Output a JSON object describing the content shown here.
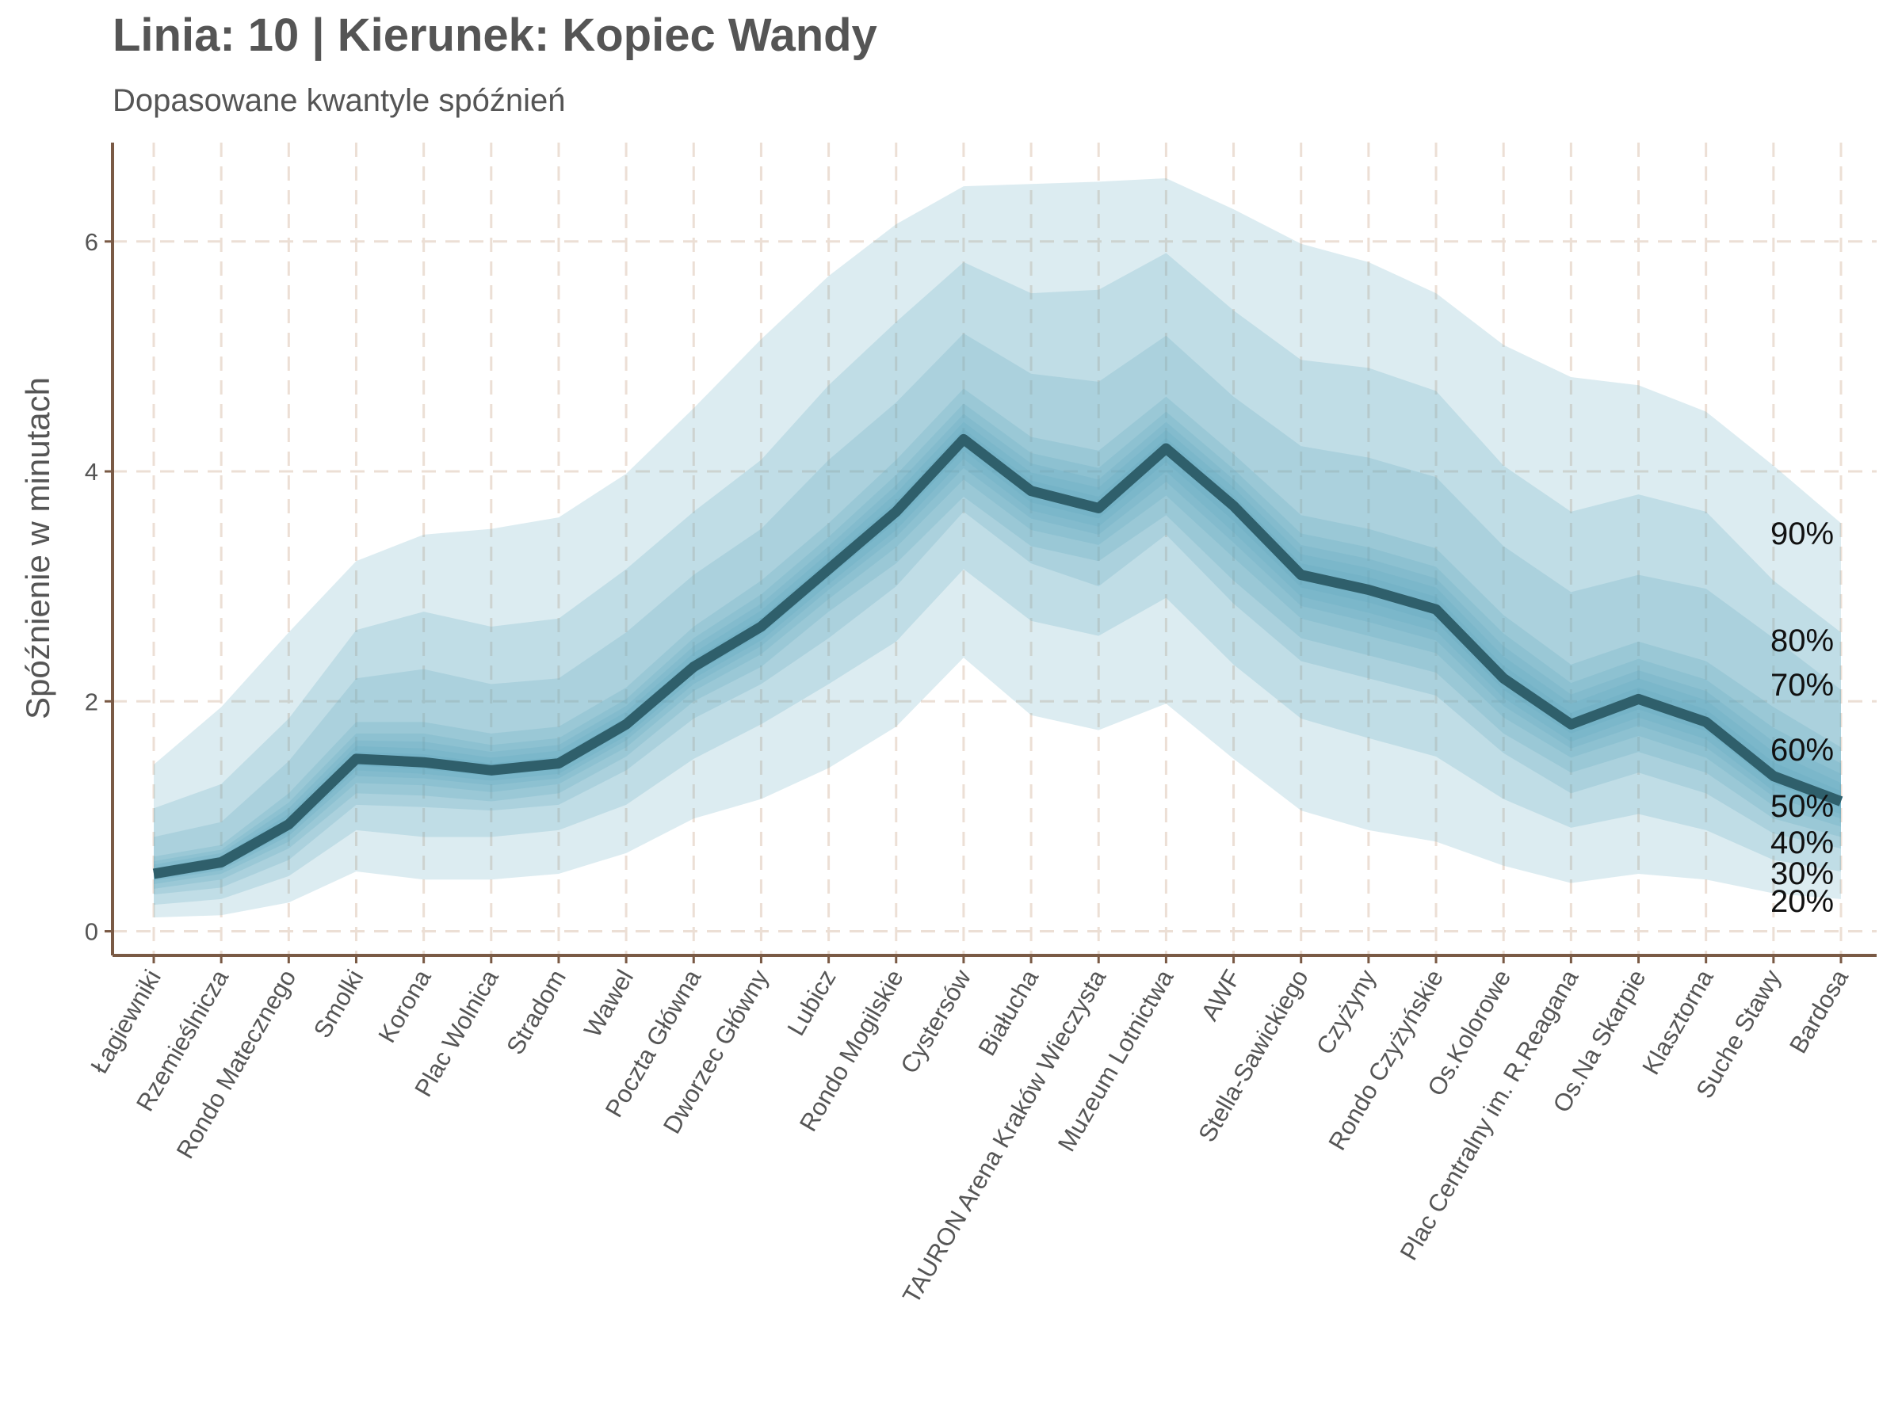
{
  "chart_data": {
    "type": "fan",
    "title": "Linia: 10 | Kierunek: Kopiec Wandy",
    "subtitle": "Dopasowane kwantyle spóźnień",
    "y_label": "Spóźnienie w minutach",
    "categories": [
      "Łagiewniki",
      "Rzemieślnicza",
      "Rondo Matecznego",
      "Smolki",
      "Korona",
      "Plac Wolnica",
      "Stradom",
      "Wawel",
      "Poczta Główna",
      "Dworzec Główny",
      "Lubicz",
      "Rondo Mogilskie",
      "Cystersów",
      "Białucha",
      "TAURON Arena Kraków Wieczysta",
      "Muzeum Lotnictwa",
      "AWF",
      "Stella-Sawickiego",
      "Czyżyny",
      "Rondo Czyżyńskie",
      "Os.Kolorowe",
      "Plac Centralny im. R.Reagana",
      "Os.Na Skarpie",
      "Klasztorna",
      "Suche Stawy",
      "Bardosa"
    ],
    "ylim": [
      -0.21,
      6.86
    ],
    "yticks": [
      0,
      2,
      4,
      6
    ],
    "grid": true,
    "band_color": "#5fa8bf",
    "median": {
      "color": "#2f5f6b",
      "values": [
        0.5,
        0.6,
        0.93,
        1.5,
        1.47,
        1.4,
        1.46,
        1.8,
        2.3,
        2.65,
        3.15,
        3.65,
        4.28,
        3.83,
        3.68,
        4.2,
        3.7,
        3.1,
        2.97,
        2.8,
        2.2,
        1.8,
        2.02,
        1.82,
        1.35,
        1.13
      ]
    },
    "bands": [
      {
        "name": "90%",
        "upper": [
          1.45,
          1.95,
          2.6,
          3.22,
          3.45,
          3.5,
          3.6,
          3.98,
          4.55,
          5.15,
          5.7,
          6.15,
          6.48,
          6.5,
          6.52,
          6.55,
          6.28,
          5.98,
          5.82,
          5.55,
          5.1,
          4.82,
          4.75,
          4.52,
          4.05,
          3.55
        ],
        "lower": [
          0.12,
          0.14,
          0.25,
          0.52,
          0.45,
          0.45,
          0.5,
          0.68,
          0.98,
          1.15,
          1.42,
          1.78,
          2.38,
          1.88,
          1.75,
          1.98,
          1.5,
          1.05,
          0.88,
          0.78,
          0.57,
          0.42,
          0.5,
          0.45,
          0.33,
          0.28
        ]
      },
      {
        "name": "80%",
        "upper": [
          1.07,
          1.28,
          1.85,
          2.62,
          2.78,
          2.65,
          2.72,
          3.15,
          3.65,
          4.1,
          4.75,
          5.3,
          5.82,
          5.55,
          5.58,
          5.9,
          5.4,
          4.97,
          4.9,
          4.7,
          4.05,
          3.65,
          3.8,
          3.65,
          3.05,
          2.6
        ],
        "lower": [
          0.23,
          0.28,
          0.48,
          0.88,
          0.82,
          0.82,
          0.88,
          1.1,
          1.5,
          1.8,
          2.15,
          2.52,
          3.15,
          2.7,
          2.57,
          2.9,
          2.32,
          1.85,
          1.68,
          1.52,
          1.15,
          0.9,
          1.02,
          0.88,
          0.62,
          0.52
        ]
      },
      {
        "name": "70%",
        "upper": [
          0.82,
          0.95,
          1.48,
          2.2,
          2.28,
          2.15,
          2.2,
          2.6,
          3.1,
          3.5,
          4.1,
          4.6,
          5.2,
          4.85,
          4.78,
          5.18,
          4.65,
          4.22,
          4.12,
          3.95,
          3.35,
          2.95,
          3.1,
          2.98,
          2.55,
          2.1
        ],
        "lower": [
          0.32,
          0.38,
          0.62,
          1.1,
          1.08,
          1.05,
          1.1,
          1.4,
          1.85,
          2.15,
          2.55,
          3,
          3.65,
          3.2,
          3.0,
          3.45,
          2.85,
          2.35,
          2.2,
          2.05,
          1.55,
          1.2,
          1.38,
          1.2,
          0.85,
          0.72
        ]
      },
      {
        "name": "60%",
        "upper": [
          0.65,
          0.75,
          1.2,
          1.82,
          1.82,
          1.72,
          1.78,
          2.12,
          2.65,
          3.05,
          3.55,
          4.1,
          4.72,
          4.3,
          4.18,
          4.65,
          4.15,
          3.62,
          3.5,
          3.33,
          2.75,
          2.32,
          2.52,
          2.35,
          1.95,
          1.6
        ],
        "lower": [
          0.37,
          0.45,
          0.72,
          1.2,
          1.18,
          1.13,
          1.2,
          1.52,
          2.0,
          2.3,
          2.78,
          3.2,
          3.78,
          3.35,
          3.22,
          3.62,
          3.05,
          2.55,
          2.4,
          2.25,
          1.72,
          1.38,
          1.56,
          1.38,
          0.98,
          0.82
        ]
      },
      {
        "name": "50%",
        "upper": [
          0.61,
          0.71,
          1.12,
          1.72,
          1.72,
          1.62,
          1.68,
          2.02,
          2.55,
          2.93,
          3.43,
          3.97,
          4.59,
          4.16,
          4.03,
          4.52,
          4.02,
          3.46,
          3.34,
          3.17,
          2.59,
          2.16,
          2.37,
          2.19,
          1.77,
          1.46
        ],
        "lower": [
          0.41,
          0.5,
          0.78,
          1.29,
          1.27,
          1.21,
          1.28,
          1.6,
          2.09,
          2.41,
          2.89,
          3.34,
          3.93,
          3.49,
          3.36,
          3.79,
          3.25,
          2.72,
          2.57,
          2.42,
          1.86,
          1.51,
          1.7,
          1.51,
          1.09,
          0.91
        ]
      },
      {
        "name": "40%",
        "upper": [
          0.58,
          0.68,
          1.07,
          1.66,
          1.65,
          1.56,
          1.62,
          1.96,
          2.48,
          2.85,
          3.35,
          3.88,
          4.5,
          4.07,
          3.93,
          4.43,
          3.93,
          3.36,
          3.24,
          3.07,
          2.48,
          2.06,
          2.27,
          2.09,
          1.65,
          1.37
        ],
        "lower": [
          0.44,
          0.53,
          0.83,
          1.35,
          1.33,
          1.27,
          1.33,
          1.66,
          2.15,
          2.48,
          2.97,
          3.43,
          4.03,
          3.59,
          3.45,
          3.91,
          3.38,
          2.83,
          2.69,
          2.53,
          1.96,
          1.59,
          1.79,
          1.6,
          1.17,
          0.98
        ]
      },
      {
        "name": "30%",
        "upper": [
          0.55,
          0.65,
          1.02,
          1.61,
          1.59,
          1.51,
          1.57,
          1.91,
          2.42,
          2.79,
          3.29,
          3.81,
          4.43,
          3.99,
          3.86,
          4.36,
          3.86,
          3.28,
          3.16,
          2.99,
          2.39,
          1.98,
          2.2,
          2.01,
          1.56,
          1.29
        ],
        "lower": [
          0.45,
          0.55,
          0.86,
          1.4,
          1.37,
          1.31,
          1.37,
          1.7,
          2.2,
          2.53,
          3.02,
          3.49,
          4.11,
          3.66,
          3.52,
          4.0,
          3.47,
          2.91,
          2.77,
          2.61,
          2.03,
          1.65,
          1.86,
          1.67,
          1.22,
          1.02
        ]
      },
      {
        "name": "20%",
        "upper": [
          0.53,
          0.63,
          0.98,
          1.56,
          1.54,
          1.46,
          1.52,
          1.86,
          2.37,
          2.73,
          3.23,
          3.74,
          4.37,
          3.92,
          3.78,
          4.29,
          3.79,
          3.2,
          3.08,
          2.91,
          2.31,
          1.9,
          2.12,
          1.93,
          1.47,
          1.22
        ],
        "lower": [
          0.47,
          0.57,
          0.89,
          1.44,
          1.41,
          1.35,
          1.41,
          1.74,
          2.24,
          2.58,
          3.08,
          3.56,
          4.18,
          3.73,
          3.59,
          4.08,
          3.57,
          2.99,
          2.86,
          2.69,
          2.1,
          1.72,
          1.93,
          1.74,
          1.28,
          1.07
        ]
      }
    ]
  }
}
